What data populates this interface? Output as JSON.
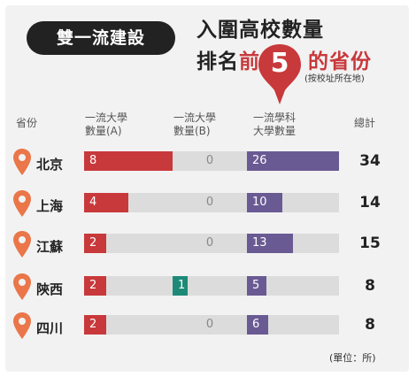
{
  "header": {
    "badge": "雙一流建設",
    "line1": "入圍高校數量",
    "line2_prefix": "排名",
    "line2_red": "前",
    "rank": "5",
    "line2_suffix": "的省份",
    "note": "(按校址所在地)"
  },
  "columns": {
    "province": "省份",
    "a_line1": "一流大學",
    "a_line2": "數量(A)",
    "b_line1": "一流大學",
    "b_line2": "數量(B)",
    "c_line1": "一流學科",
    "c_line2": "大學數量",
    "total": "總計"
  },
  "unit": "(單位：所)",
  "colors": {
    "a": "#c8393b",
    "b": "#1d8a78",
    "c": "#6a5a93",
    "track": "#dcdcdc",
    "pin": "#ea7649"
  },
  "chart_data": {
    "type": "bar",
    "categories": [
      "北京",
      "上海",
      "江蘇",
      "陝西",
      "四川"
    ],
    "series": [
      {
        "name": "一流大學數量(A)",
        "values": [
          8,
          4,
          2,
          2,
          2
        ]
      },
      {
        "name": "一流大學數量(B)",
        "values": [
          0,
          0,
          0,
          1,
          0
        ]
      },
      {
        "name": "一流學科大學數量",
        "values": [
          26,
          10,
          13,
          5,
          6
        ]
      }
    ],
    "totals": [
      34,
      14,
      15,
      8,
      8
    ]
  }
}
